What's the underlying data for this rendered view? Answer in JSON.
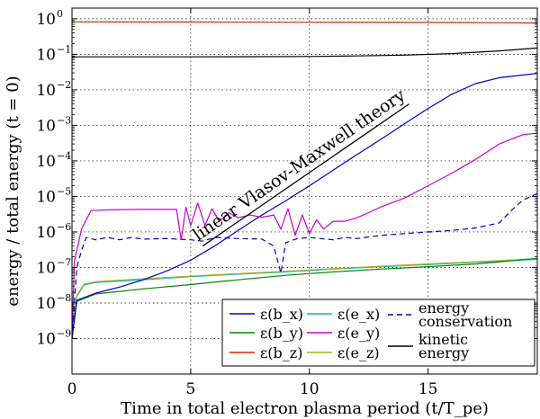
{
  "chart_data": {
    "type": "line",
    "title": "",
    "xlabel": "Time in total electron plasma period (t/T_pe)",
    "ylabel": "energy / total energy (t = 0)",
    "xlim": [
      0,
      19.6
    ],
    "ylim": [
      1e-10,
      2
    ],
    "yscale": "log",
    "grid": true,
    "legend_position": "lower-right",
    "x_ticks": [
      {
        "value": 0,
        "label": "0"
      },
      {
        "value": 5,
        "label": "5"
      },
      {
        "value": 10,
        "label": "10"
      },
      {
        "value": 15,
        "label": "15"
      }
    ],
    "y_ticks": [
      {
        "value": 1,
        "base": "10",
        "exp": "0"
      },
      {
        "value": 0.1,
        "base": "10",
        "exp": "−1"
      },
      {
        "value": 0.01,
        "base": "10",
        "exp": "−2"
      },
      {
        "value": 0.001,
        "base": "10",
        "exp": "−3"
      },
      {
        "value": 0.0001,
        "base": "10",
        "exp": "−4"
      },
      {
        "value": 1e-05,
        "base": "10",
        "exp": "−5"
      },
      {
        "value": 1e-06,
        "base": "10",
        "exp": "−6"
      },
      {
        "value": 1e-07,
        "base": "10",
        "exp": "−7"
      },
      {
        "value": 1e-08,
        "base": "10",
        "exp": "−8"
      },
      {
        "value": 1e-09,
        "base": "10",
        "exp": "−9"
      }
    ],
    "annotation": {
      "text": "linear Vlasov-Maxwell theory",
      "line": [
        [
          5.5,
          4e-07
        ],
        [
          14.2,
          0.004
        ]
      ]
    },
    "series": [
      {
        "name": "ε(b_x)",
        "color": "#0000cc",
        "style": "solid",
        "points": [
          [
            0,
            1e-09
          ],
          [
            0.2,
            1.2e-08
          ],
          [
            1,
            1.9e-08
          ],
          [
            2,
            2.8e-08
          ],
          [
            3,
            4.5e-08
          ],
          [
            4,
            8e-08
          ],
          [
            5,
            1.6e-07
          ],
          [
            6,
            4e-07
          ],
          [
            7,
            1.1e-06
          ],
          [
            8,
            3e-06
          ],
          [
            9,
            7.5e-06
          ],
          [
            10,
            2e-05
          ],
          [
            11,
            5.5e-05
          ],
          [
            12,
            0.00015
          ],
          [
            13,
            0.0004
          ],
          [
            14,
            0.0011
          ],
          [
            15,
            0.003
          ],
          [
            16,
            0.0075
          ],
          [
            17,
            0.015
          ],
          [
            18,
            0.022
          ],
          [
            19.6,
            0.029
          ]
        ]
      },
      {
        "name": "ε(b_y)",
        "color": "#008800",
        "style": "solid",
        "points": [
          [
            0,
            1e-09
          ],
          [
            0.2,
            1.1e-08
          ],
          [
            1,
            1.8e-08
          ],
          [
            3,
            2.5e-08
          ],
          [
            5,
            3.3e-08
          ],
          [
            7,
            4.5e-08
          ],
          [
            9,
            6e-08
          ],
          [
            11,
            7.5e-08
          ],
          [
            13,
            9e-08
          ],
          [
            15,
            1.05e-07
          ],
          [
            17,
            1.25e-07
          ],
          [
            19.6,
            1.8e-07
          ]
        ]
      },
      {
        "name": "ε(b_z)",
        "color": "#dd2200",
        "style": "solid",
        "points": [
          [
            0,
            0.82
          ],
          [
            5,
            0.81
          ],
          [
            10,
            0.8
          ],
          [
            15,
            0.79
          ],
          [
            18,
            0.78
          ],
          [
            19.6,
            0.76
          ]
        ]
      },
      {
        "name": "ε(e_x)",
        "color": "#00bbbb",
        "style": "solid",
        "points": [
          [
            0,
            1e-09
          ],
          [
            0.2,
            1.5e-08
          ],
          [
            0.5,
            3.2e-08
          ],
          [
            1,
            3.8e-08
          ],
          [
            3,
            4.5e-08
          ],
          [
            5,
            5.5e-08
          ],
          [
            7,
            6.5e-08
          ],
          [
            9,
            7.5e-08
          ],
          [
            11,
            9e-08
          ],
          [
            13,
            1.05e-07
          ],
          [
            15,
            1.2e-07
          ],
          [
            17,
            1.4e-07
          ],
          [
            19.6,
            1.7e-07
          ]
        ]
      },
      {
        "name": "ε(e_y)",
        "color": "#cc00cc",
        "style": "solid",
        "points": [
          [
            0,
            1e-09
          ],
          [
            0.1,
            1.5e-07
          ],
          [
            0.4,
            1.2e-06
          ],
          [
            0.8,
            4e-06
          ],
          [
            1.5,
            4.2e-06
          ],
          [
            3,
            4.3e-06
          ],
          [
            4.4,
            4.3e-06
          ],
          [
            4.6,
            6e-07
          ],
          [
            4.8,
            5e-06
          ],
          [
            5,
            1.5e-06
          ],
          [
            5.3,
            6.5e-06
          ],
          [
            5.6,
            1.5e-06
          ],
          [
            5.9,
            4.5e-06
          ],
          [
            6.2,
            2e-06
          ],
          [
            6.6,
            3.5e-06
          ],
          [
            7,
            2.5e-06
          ],
          [
            7.5,
            3e-06
          ],
          [
            8,
            2.6e-06
          ],
          [
            8.5,
            3e-06
          ],
          [
            8.8,
            1.2e-06
          ],
          [
            9.1,
            4.5e-06
          ],
          [
            9.4,
            8e-07
          ],
          [
            9.7,
            3e-06
          ],
          [
            10,
            9e-07
          ],
          [
            10.3,
            2.2e-06
          ],
          [
            10.6,
            1.2e-06
          ],
          [
            11,
            2e-06
          ],
          [
            11.5,
            2e-06
          ],
          [
            12,
            2.5e-06
          ],
          [
            12.5,
            3.5e-06
          ],
          [
            13,
            5e-06
          ],
          [
            14,
            9e-06
          ],
          [
            15,
            2e-05
          ],
          [
            16,
            4.5e-05
          ],
          [
            17,
            0.00011
          ],
          [
            18,
            0.0003
          ],
          [
            19,
            0.00055
          ],
          [
            19.6,
            0.0006
          ]
        ]
      },
      {
        "name": "ε(e_z)",
        "color": "#aaaa22",
        "style": "solid",
        "points": [
          [
            0,
            1e-09
          ],
          [
            0.2,
            1.6e-08
          ],
          [
            0.5,
            3.4e-08
          ],
          [
            1,
            4e-08
          ],
          [
            3,
            4.8e-08
          ],
          [
            5,
            5.7e-08
          ],
          [
            7,
            6.7e-08
          ],
          [
            9,
            7.8e-08
          ],
          [
            11,
            9.2e-08
          ],
          [
            13,
            1.08e-07
          ],
          [
            15,
            1.25e-07
          ],
          [
            17,
            1.45e-07
          ],
          [
            19.6,
            1.75e-07
          ]
        ]
      },
      {
        "name": "energy conservation",
        "label_lines": [
          "energy",
          "conservation"
        ],
        "color": "#0000cc",
        "style": "dashed",
        "points": [
          [
            0,
            1e-09
          ],
          [
            0.2,
            1e-07
          ],
          [
            0.4,
            3e-07
          ],
          [
            0.6,
            7e-07
          ],
          [
            1,
            6e-07
          ],
          [
            1.5,
            7e-07
          ],
          [
            2,
            6e-07
          ],
          [
            2.5,
            7e-07
          ],
          [
            3,
            6.3e-07
          ],
          [
            4,
            6.5e-07
          ],
          [
            5,
            6e-07
          ],
          [
            5.5,
            5.5e-07
          ],
          [
            6,
            7e-07
          ],
          [
            7,
            6.5e-07
          ],
          [
            8,
            6.3e-07
          ],
          [
            8.5,
            4e-07
          ],
          [
            8.8,
            7e-08
          ],
          [
            9,
            5e-07
          ],
          [
            9.5,
            6.5e-07
          ],
          [
            10,
            7e-07
          ],
          [
            11,
            6e-07
          ],
          [
            11.5,
            7e-07
          ],
          [
            12,
            6.5e-07
          ],
          [
            13,
            8e-07
          ],
          [
            14,
            9e-07
          ],
          [
            15,
            1e-06
          ],
          [
            16,
            1.1e-06
          ],
          [
            17,
            1.3e-06
          ],
          [
            18,
            1.8e-06
          ],
          [
            18.5,
            4e-06
          ],
          [
            19,
            8e-06
          ],
          [
            19.6,
            1.2e-05
          ]
        ]
      },
      {
        "name": "kinetic energy",
        "label_lines": [
          "kinetic",
          "energy"
        ],
        "color": "#000000",
        "style": "solid",
        "points": [
          [
            0,
            0.085
          ],
          [
            5,
            0.085
          ],
          [
            8,
            0.086
          ],
          [
            10,
            0.087
          ],
          [
            12,
            0.09
          ],
          [
            14,
            0.095
          ],
          [
            16,
            0.105
          ],
          [
            18,
            0.125
          ],
          [
            19.6,
            0.15
          ]
        ]
      }
    ]
  }
}
